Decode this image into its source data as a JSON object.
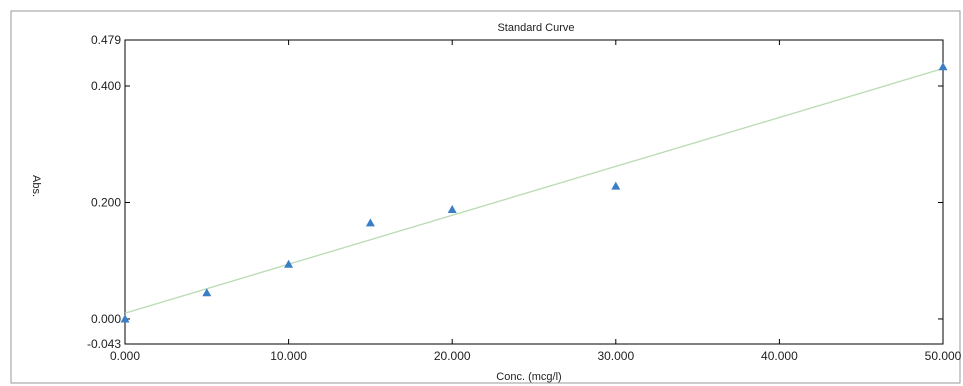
{
  "chart_data": {
    "type": "scatter",
    "title": "Standard Curve",
    "xlabel": "Conc. (mcg/l)",
    "ylabel": "Abs.",
    "xlim": [
      0,
      50
    ],
    "ylim": [
      -0.043,
      0.479
    ],
    "x_ticks": [
      0,
      10,
      20,
      30,
      40,
      50
    ],
    "x_tick_labels": [
      "0.000",
      "10.000",
      "20.000",
      "30.000",
      "40.000",
      "50.000"
    ],
    "y_ticks": [
      -0.043,
      0.0,
      0.2,
      0.4,
      0.479
    ],
    "y_tick_labels": [
      "-0.043",
      "0.000",
      "0.200",
      "0.400",
      "0.479"
    ],
    "grid": false,
    "series": [
      {
        "marker": "triangle",
        "color": "#3a7ec6",
        "x": [
          0,
          5,
          10,
          15,
          20,
          30,
          50
        ],
        "y": [
          0.0,
          0.045,
          0.094,
          0.165,
          0.188,
          0.228,
          0.433
        ]
      }
    ],
    "fit_line": {
      "color": "#b9dcb3",
      "x": [
        0,
        50
      ],
      "y": [
        0.01,
        0.43
      ]
    }
  }
}
